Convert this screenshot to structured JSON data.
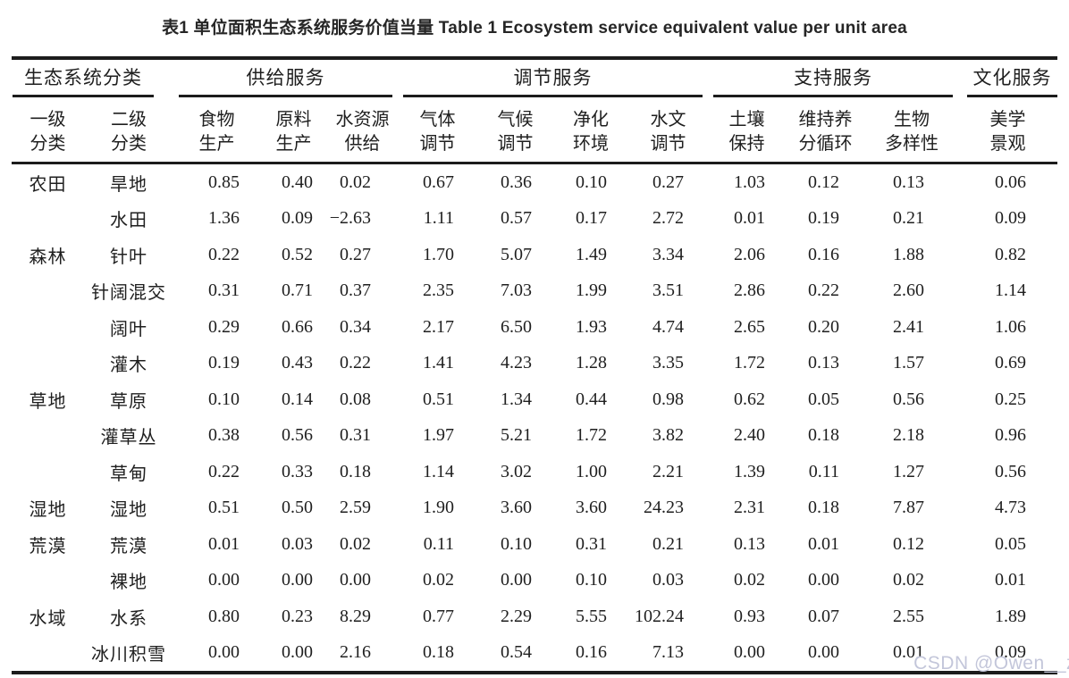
{
  "title": "表1 单位面积生态系统服务价值当量 Table 1 Ecosystem service equivalent value per unit area",
  "watermark": "CSDN @Owen__z",
  "colors": {
    "text": "#1f1f1f",
    "rule": "#1c1c1c",
    "watermark": "#c3c6da"
  },
  "table": {
    "groups": [
      {
        "label": "生态系统分类",
        "span": 2
      },
      {
        "label": "供给服务",
        "span": 3
      },
      {
        "label": "调节服务",
        "span": 4
      },
      {
        "label": "支持服务",
        "span": 3
      },
      {
        "label": "文化服务",
        "span": 1
      }
    ],
    "sub_headers": [
      {
        "line1": "一级",
        "line2": "分类"
      },
      {
        "line1": "二级",
        "line2": "分类"
      },
      {
        "line1": "食物",
        "line2": "生产"
      },
      {
        "line1": "原料",
        "line2": "生产"
      },
      {
        "line1": "水资源",
        "line2": "供给"
      },
      {
        "line1": "气体",
        "line2": "调节"
      },
      {
        "line1": "气候",
        "line2": "调节"
      },
      {
        "line1": "净化",
        "line2": "环境"
      },
      {
        "line1": "水文",
        "line2": "调节"
      },
      {
        "line1": "土壤",
        "line2": "保持"
      },
      {
        "line1": "维持养",
        "line2": "分循环"
      },
      {
        "line1": "生物",
        "line2": "多样性"
      },
      {
        "line1": "美学",
        "line2": "景观"
      }
    ],
    "rows": [
      {
        "l1": "农田",
        "l2": "旱地",
        "v": [
          "0.85",
          "0.40",
          "0.02",
          "0.67",
          "0.36",
          "0.10",
          "0.27",
          "1.03",
          "0.12",
          "0.13",
          "0.06"
        ]
      },
      {
        "l1": "",
        "l2": "水田",
        "v": [
          "1.36",
          "0.09",
          "−2.63",
          "1.11",
          "0.57",
          "0.17",
          "2.72",
          "0.01",
          "0.19",
          "0.21",
          "0.09"
        ]
      },
      {
        "l1": "森林",
        "l2": "针叶",
        "v": [
          "0.22",
          "0.52",
          "0.27",
          "1.70",
          "5.07",
          "1.49",
          "3.34",
          "2.06",
          "0.16",
          "1.88",
          "0.82"
        ]
      },
      {
        "l1": "",
        "l2": "针阔混交",
        "v": [
          "0.31",
          "0.71",
          "0.37",
          "2.35",
          "7.03",
          "1.99",
          "3.51",
          "2.86",
          "0.22",
          "2.60",
          "1.14"
        ]
      },
      {
        "l1": "",
        "l2": "阔叶",
        "v": [
          "0.29",
          "0.66",
          "0.34",
          "2.17",
          "6.50",
          "1.93",
          "4.74",
          "2.65",
          "0.20",
          "2.41",
          "1.06"
        ]
      },
      {
        "l1": "",
        "l2": "灌木",
        "v": [
          "0.19",
          "0.43",
          "0.22",
          "1.41",
          "4.23",
          "1.28",
          "3.35",
          "1.72",
          "0.13",
          "1.57",
          "0.69"
        ]
      },
      {
        "l1": "草地",
        "l2": "草原",
        "v": [
          "0.10",
          "0.14",
          "0.08",
          "0.51",
          "1.34",
          "0.44",
          "0.98",
          "0.62",
          "0.05",
          "0.56",
          "0.25"
        ]
      },
      {
        "l1": "",
        "l2": "灌草丛",
        "v": [
          "0.38",
          "0.56",
          "0.31",
          "1.97",
          "5.21",
          "1.72",
          "3.82",
          "2.40",
          "0.18",
          "2.18",
          "0.96"
        ]
      },
      {
        "l1": "",
        "l2": "草甸",
        "v": [
          "0.22",
          "0.33",
          "0.18",
          "1.14",
          "3.02",
          "1.00",
          "2.21",
          "1.39",
          "0.11",
          "1.27",
          "0.56"
        ]
      },
      {
        "l1": "湿地",
        "l2": "湿地",
        "v": [
          "0.51",
          "0.50",
          "2.59",
          "1.90",
          "3.60",
          "3.60",
          "24.23",
          "2.31",
          "0.18",
          "7.87",
          "4.73"
        ]
      },
      {
        "l1": "荒漠",
        "l2": "荒漠",
        "v": [
          "0.01",
          "0.03",
          "0.02",
          "0.11",
          "0.10",
          "0.31",
          "0.21",
          "0.13",
          "0.01",
          "0.12",
          "0.05"
        ]
      },
      {
        "l1": "",
        "l2": "裸地",
        "v": [
          "0.00",
          "0.00",
          "0.00",
          "0.02",
          "0.00",
          "0.10",
          "0.03",
          "0.02",
          "0.00",
          "0.02",
          "0.01"
        ]
      },
      {
        "l1": "水域",
        "l2": "水系",
        "v": [
          "0.80",
          "0.23",
          "8.29",
          "0.77",
          "2.29",
          "5.55",
          "102.24",
          "0.93",
          "0.07",
          "2.55",
          "1.89"
        ]
      },
      {
        "l1": "",
        "l2": "冰川积雪",
        "v": [
          "0.00",
          "0.00",
          "2.16",
          "0.18",
          "0.54",
          "0.16",
          "7.13",
          "0.00",
          "0.00",
          "0.01",
          "0.09"
        ]
      }
    ]
  }
}
